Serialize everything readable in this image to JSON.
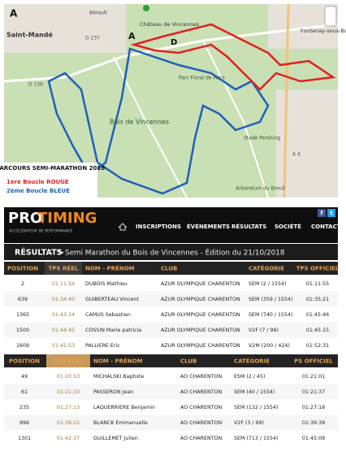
{
  "map": {
    "labels": [
      "A",
      "Saint-Mandé",
      "Bérault",
      "Château de Vincennes",
      "A",
      "D",
      "Fontenay-sous-Bois",
      "D 237",
      "D 158",
      "D 158",
      "Bois de Vincennes",
      "Parc Floral de Paris",
      "Stade Pershing",
      "Arboretum du Breuil",
      "A 4"
    ],
    "legend": {
      "title": "PARCOURS SEMI-MARATHON 2018",
      "loop1": "1ere Boucle ROUGE",
      "loop2": "2ème Boucle BLEUE",
      "loop1_color": "#e02020",
      "loop2_color": "#1f5fb8"
    }
  },
  "header": {
    "logo_pro": "PRO",
    "logo_timing": "TIMING",
    "tagline": "ACCÉLÉRATEUR DE PERFORMANCE",
    "nav": [
      "INSCRIPTIONS",
      "ÉVÉNEMENTS",
      "RÉSULTATS",
      "SOCIÉTÉ",
      "CONTACT"
    ],
    "social": [
      "f",
      "t"
    ]
  },
  "results": {
    "label": "RÉSULTATS",
    "title": "Semi Marathon du Bois de Vincennes - Édition du 21/10/2018"
  },
  "tables": [
    {
      "columns": [
        "POSITION",
        "TPS RÉEL",
        "NOM - PRÉNOM",
        "CLUB",
        "CATÉGORIE",
        "TPS OFFICIEL"
      ],
      "highlight_row": 3,
      "rows": [
        [
          "2",
          "01:11:54",
          "DUBOIS Mathieu",
          "AZUR OLYMPIQUE CHARENTON",
          "SEM (2 / 1554)",
          "01:11:55"
        ],
        [
          "639",
          "01:34:40",
          "GUIBERTEAU Vincent",
          "AZUR OLYMPIQUE CHARENTON",
          "SEM (359 / 1554)",
          "01:35:21"
        ],
        [
          "1365",
          "01:43:14",
          "CAMUS Sebastien",
          "AZUR OLYMPIQUE CHARENTON",
          "SEM (740 / 1554)",
          "01:45:46"
        ],
        [
          "1500",
          "01:44:42",
          "COSSIN Marie patricia",
          "AZUR OLYMPIQUE CHARENTON",
          "V2F (7 / 99)",
          "01:45:15"
        ],
        [
          "1609",
          "01:45:53",
          "PALLIERE Eric",
          "AZUR OLYMPIQUE CHARENTON",
          "V2M (200 / 424)",
          "01:52:31"
        ]
      ]
    },
    {
      "columns": [
        "POSITION",
        "TPS RÉEL",
        "NOM - PRÉNOM",
        "CLUB",
        "CATÉGORIE",
        "PS OFFICIEL"
      ],
      "highlight_row": 3,
      "rows": [
        [
          "49",
          "01:20:53",
          "MICHALSKI Baptiste",
          "AO CHARENTON",
          "ESM (2 / 45)",
          "01:21:01"
        ],
        [
          "61",
          "01:21:33",
          "PASSERON Jean",
          "AO CHARENTON",
          "SEM (40 / 1554)",
          "01:21:37"
        ],
        [
          "235",
          "01:27:13",
          "LAQUERRIERE Benjamin",
          "AO CHARENTON",
          "SEM (132 / 1554)",
          "01:27:18"
        ],
        [
          "996",
          "01:39:22",
          "BLANCK Emmanuelle",
          "AO CHARENTON",
          "V2F (3 / 99)",
          "01:39:39"
        ],
        [
          "1301",
          "01:42:37",
          "GUILLEMET Julien",
          "AO CHARENTON",
          "SEM (713 / 1554)",
          "01:45:09"
        ]
      ]
    }
  ],
  "highlight_color": "#d23c7c"
}
